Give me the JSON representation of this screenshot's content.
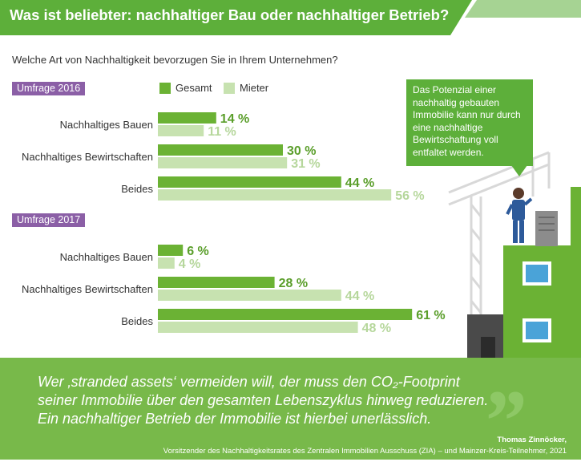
{
  "header": {
    "title": "Was ist beliebter: nachhaltiger Bau oder nachhaltiger Betrieb?"
  },
  "question": "Welche Art von Nachhaltigkeit bevorzugen Sie in Ihrem Unternehmen?",
  "legend": {
    "gesamt": "Gesamt",
    "mieter": "Mieter"
  },
  "colors": {
    "header": "#5daf3a",
    "gesamt": "#6bb234",
    "mieter": "#c7e2b0",
    "badge": "#8b5fa6",
    "quote_bg": "#78b94a"
  },
  "surveys": [
    "Umfrage 2016",
    "Umfrage 2017"
  ],
  "categories": [
    "Nachhaltiges Bauen",
    "Nachhaltiges Bewirtschaften",
    "Beides"
  ],
  "speech_bubble": "Das Potenzial einer nachhaltig gebauten Immobilie kann nur durch eine nachhaltige Bewirtschaftung voll entfaltet werden.",
  "quote": {
    "lines": [
      "Wer ‚stranded assets‘ vermeiden will, der muss den CO₂-Footprint",
      "seiner Immobilie über den gesamten Lebenszyklus hinweg reduzieren.",
      "Ein nachhaltiger Betrieb der Immobilie ist hierbei unerlässlich."
    ],
    "author": "Thomas Zinnöcker,",
    "role": "Vorsitzender des Nachhaltigkeitsrates des Zentralen Immobilien Ausschuss (ZIA) – und Mainzer-Kreis-Teilnehmer, 2021"
  },
  "chart_data": [
    {
      "type": "bar",
      "title": "Umfrage 2016",
      "categories": [
        "Nachhaltiges Bauen",
        "Nachhaltiges Bewirtschaften",
        "Beides"
      ],
      "series": [
        {
          "name": "Gesamt",
          "values": [
            14,
            30,
            44
          ]
        },
        {
          "name": "Mieter",
          "values": [
            11,
            31,
            56
          ]
        }
      ],
      "unit": "%"
    },
    {
      "type": "bar",
      "title": "Umfrage 2017",
      "categories": [
        "Nachhaltiges Bauen",
        "Nachhaltiges Bewirtschaften",
        "Beides"
      ],
      "series": [
        {
          "name": "Gesamt",
          "values": [
            6,
            28,
            61
          ]
        },
        {
          "name": "Mieter",
          "values": [
            4,
            44,
            48
          ]
        }
      ],
      "unit": "%"
    }
  ]
}
